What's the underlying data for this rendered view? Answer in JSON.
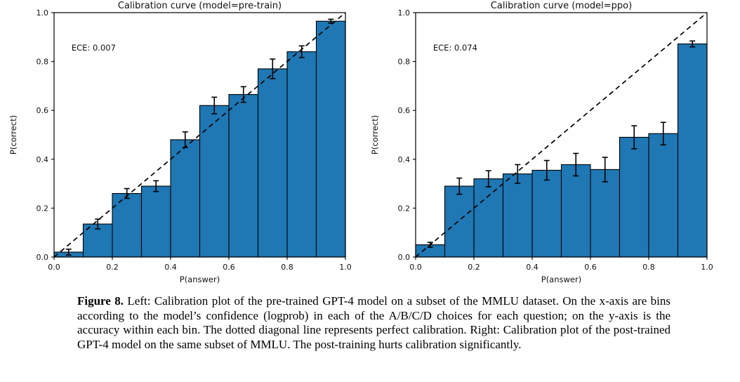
{
  "page": {
    "background": "#ffffff",
    "figure_type": "matplotlib-calibration-curves"
  },
  "caption": {
    "label": "Figure 8.",
    "text": " Left: Calibration plot of the pre-trained GPT-4 model on a subset of the MMLU dataset. On the x-axis are bins according to the model’s confidence (logprob) in each of the A/B/C/D choices for each question; on the y-axis is the accuracy within each bin. The dotted diagonal line represents perfect calibration. Right: Calibration plot of the post-trained GPT-4 model on the same subset of MMLU. The post-training hurts calibration significantly."
  },
  "chart_data": [
    {
      "type": "bar",
      "title": "Calibration curve (model=pre-train)",
      "annotation": "ECE: 0.007",
      "annotation_pos": [
        0.06,
        0.856
      ],
      "xlabel": "P(answer)",
      "ylabel": "P(correct)",
      "xlim": [
        0.0,
        1.0
      ],
      "ylim": [
        0.0,
        1.0
      ],
      "xticks": [
        "0.0",
        "0.2",
        "0.4",
        "0.6",
        "0.8",
        "1.0"
      ],
      "yticks": [
        "0.0",
        "0.2",
        "0.4",
        "0.6",
        "0.8",
        "1.0"
      ],
      "bin_edges": [
        0.0,
        0.1,
        0.2,
        0.3,
        0.4,
        0.5,
        0.6,
        0.7,
        0.8,
        0.9,
        1.0
      ],
      "bin_centers": [
        0.05,
        0.15,
        0.25,
        0.35,
        0.45,
        0.55,
        0.65,
        0.75,
        0.85,
        0.95
      ],
      "values": [
        0.02,
        0.135,
        0.26,
        0.29,
        0.48,
        0.62,
        0.665,
        0.77,
        0.84,
        0.965
      ],
      "errors": [
        0.012,
        0.02,
        0.02,
        0.022,
        0.032,
        0.034,
        0.032,
        0.04,
        0.024,
        0.008
      ],
      "bar_color": "#1f77b4",
      "bar_edge_color": "#000000",
      "diagonal": {
        "style": "dashed",
        "from": [
          0.0,
          0.0
        ],
        "to": [
          1.0,
          1.0
        ],
        "meaning": "perfect calibration"
      },
      "grid": false,
      "legend": null
    },
    {
      "type": "bar",
      "title": "Calibration curve (model=ppo)",
      "annotation": "ECE: 0.074",
      "annotation_pos": [
        0.06,
        0.856
      ],
      "xlabel": "P(answer)",
      "ylabel": "P(correct)",
      "xlim": [
        0.0,
        1.0
      ],
      "ylim": [
        0.0,
        1.0
      ],
      "xticks": [
        "0.0",
        "0.2",
        "0.4",
        "0.6",
        "0.8",
        "1.0"
      ],
      "yticks": [
        "0.0",
        "0.2",
        "0.4",
        "0.6",
        "0.8",
        "1.0"
      ],
      "bin_edges": [
        0.0,
        0.1,
        0.2,
        0.3,
        0.4,
        0.5,
        0.6,
        0.7,
        0.8,
        0.9,
        1.0
      ],
      "bin_centers": [
        0.05,
        0.15,
        0.25,
        0.35,
        0.45,
        0.55,
        0.65,
        0.75,
        0.85,
        0.95
      ],
      "values": [
        0.05,
        0.29,
        0.32,
        0.34,
        0.355,
        0.378,
        0.358,
        0.49,
        0.505,
        0.872
      ],
      "errors": [
        0.01,
        0.033,
        0.033,
        0.038,
        0.04,
        0.046,
        0.05,
        0.047,
        0.046,
        0.012
      ],
      "bar_color": "#1f77b4",
      "bar_edge_color": "#000000",
      "diagonal": {
        "style": "dashed",
        "from": [
          0.0,
          0.0
        ],
        "to": [
          1.0,
          1.0
        ],
        "meaning": "perfect calibration"
      },
      "grid": false,
      "legend": null
    }
  ]
}
